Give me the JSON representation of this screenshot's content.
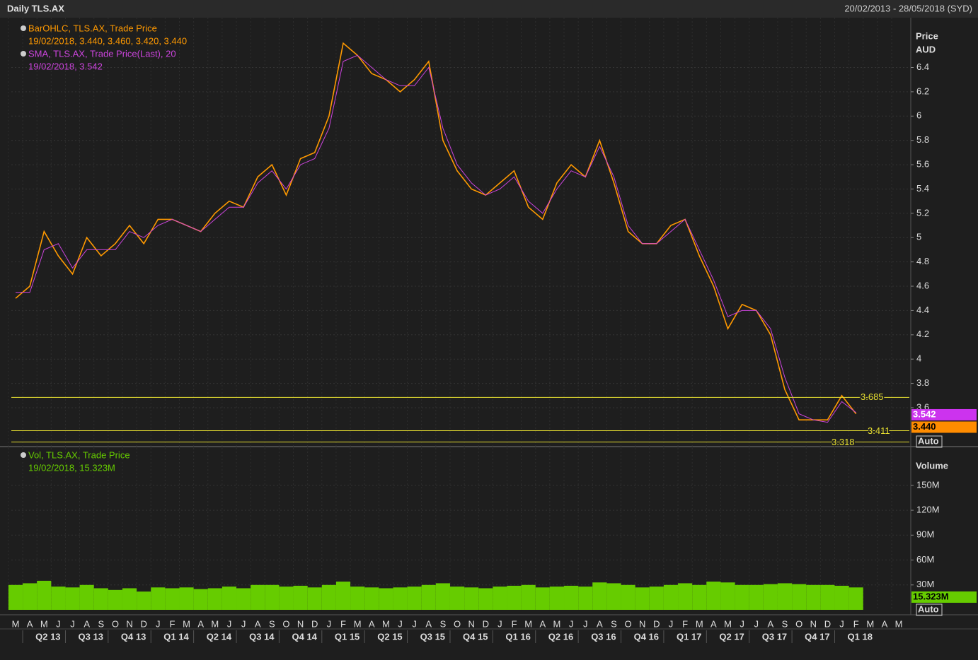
{
  "header": {
    "title": "Daily TLS.AX",
    "range": "20/02/2013 - 28/05/2018 (SYD)"
  },
  "x_axis": {
    "months": [
      "M",
      "A",
      "M",
      "J",
      "J",
      "A",
      "S",
      "O",
      "N",
      "D",
      "J",
      "F",
      "M",
      "A",
      "M",
      "J",
      "J",
      "A",
      "S",
      "O",
      "N",
      "D",
      "J",
      "F",
      "M",
      "A",
      "M",
      "J",
      "J",
      "A",
      "S",
      "O",
      "N",
      "D",
      "J",
      "F",
      "M",
      "A",
      "M",
      "J",
      "J",
      "A",
      "S",
      "O",
      "N",
      "D",
      "J",
      "F",
      "M",
      "A",
      "M",
      "J",
      "J",
      "A",
      "S",
      "O",
      "N",
      "D",
      "J",
      "F",
      "M",
      "A",
      "M"
    ],
    "quarters": [
      "Q2 13",
      "Q3 13",
      "Q4 13",
      "Q1 14",
      "Q2 14",
      "Q3 14",
      "Q4 14",
      "Q1 15",
      "Q2 15",
      "Q3 15",
      "Q4 15",
      "Q1 16",
      "Q2 16",
      "Q3 16",
      "Q4 16",
      "Q1 17",
      "Q2 17",
      "Q3 17",
      "Q4 17",
      "Q1 18"
    ]
  },
  "chart_data": [
    {
      "type": "line",
      "axis_title": "Price",
      "axis_unit": "AUD",
      "ylim": [
        3.28,
        6.81
      ],
      "yticks": [
        3.6,
        3.8,
        4,
        4.2,
        4.4,
        4.6,
        4.8,
        5,
        5.2,
        5.4,
        5.6,
        5.8,
        6,
        6.2,
        6.4
      ],
      "grid": true,
      "series": [
        {
          "name": "BarOHLC, TLS.AX, Trade Price",
          "legend_detail": "19/02/2018, 3.440, 3.460, 3.420, 3.440",
          "color": "#ff9900",
          "values": [
            4.5,
            4.6,
            5.05,
            4.85,
            4.7,
            5.0,
            4.85,
            4.95,
            5.1,
            4.95,
            5.15,
            5.15,
            5.1,
            5.05,
            5.2,
            5.3,
            5.25,
            5.5,
            5.6,
            5.35,
            5.65,
            5.7,
            6.0,
            6.6,
            6.5,
            6.35,
            6.3,
            6.2,
            6.3,
            6.45,
            5.8,
            5.55,
            5.4,
            5.35,
            5.45,
            5.55,
            5.25,
            5.15,
            5.45,
            5.6,
            5.5,
            5.8,
            5.45,
            5.05,
            4.95,
            4.95,
            5.1,
            5.15,
            4.85,
            4.6,
            4.25,
            4.45,
            4.4,
            4.2,
            3.75,
            3.5,
            3.5,
            3.5,
            3.7,
            3.55,
            null,
            null,
            null
          ]
        },
        {
          "name": "SMA, TLS.AX, Trade Price(Last),  20",
          "legend_detail": "19/02/2018, 3.542",
          "color": "#cc44dd",
          "values": [
            4.55,
            4.55,
            4.9,
            4.95,
            4.75,
            4.9,
            4.9,
            4.9,
            5.05,
            5.0,
            5.1,
            5.15,
            5.1,
            5.05,
            5.15,
            5.25,
            5.25,
            5.45,
            5.55,
            5.4,
            5.6,
            5.65,
            5.9,
            6.45,
            6.5,
            6.4,
            6.3,
            6.25,
            6.25,
            6.4,
            5.9,
            5.6,
            5.45,
            5.35,
            5.4,
            5.5,
            5.3,
            5.2,
            5.4,
            5.55,
            5.5,
            5.75,
            5.5,
            5.1,
            4.95,
            4.95,
            5.05,
            5.15,
            4.9,
            4.65,
            4.35,
            4.4,
            4.4,
            4.25,
            3.85,
            3.55,
            3.5,
            3.48,
            3.65,
            3.56,
            null,
            null,
            null
          ]
        }
      ],
      "levels": [
        3.685,
        3.411,
        3.318
      ],
      "markers": [
        {
          "value": 3.542,
          "label": "3.542",
          "color": "#cc33ee"
        },
        {
          "value": 3.44,
          "label": "3.440",
          "color": "#ff8c00"
        }
      ],
      "scale_mode": "Auto"
    },
    {
      "type": "bar",
      "axis_title": "Volume",
      "ylim": [
        0,
        195
      ],
      "yticks": [
        {
          "value": 30,
          "label": "30M"
        },
        {
          "value": 60,
          "label": "60M"
        },
        {
          "value": 90,
          "label": "90M"
        },
        {
          "value": 120,
          "label": "120M"
        },
        {
          "value": 150,
          "label": "150M"
        }
      ],
      "grid": true,
      "series": [
        {
          "name": "Vol, TLS.AX, Trade Price",
          "legend_detail": "19/02/2018, 15.323M",
          "color": "#66cc00",
          "values": [
            30,
            32,
            35,
            28,
            27,
            30,
            26,
            24,
            26,
            22,
            27,
            26,
            27,
            25,
            26,
            28,
            26,
            30,
            30,
            28,
            29,
            27,
            30,
            34,
            28,
            27,
            26,
            27,
            28,
            30,
            32,
            28,
            27,
            26,
            28,
            29,
            30,
            27,
            28,
            29,
            28,
            33,
            32,
            30,
            27,
            28,
            30,
            32,
            30,
            34,
            33,
            30,
            30,
            31,
            32,
            31,
            30,
            30,
            29,
            27,
            null,
            null,
            null
          ]
        }
      ],
      "markers": [
        {
          "value": 15.323,
          "label": "15.323M",
          "color": "#66cc00"
        }
      ],
      "scale_mode": "Auto"
    }
  ]
}
